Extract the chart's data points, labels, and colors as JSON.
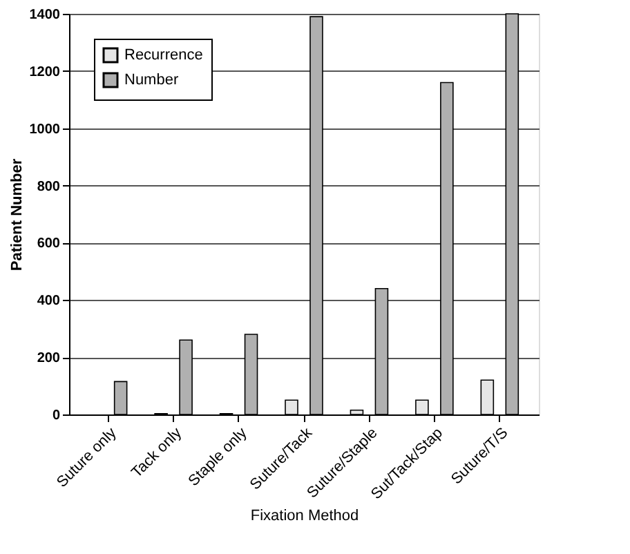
{
  "chart_data": {
    "type": "bar",
    "xlabel": "Fixation Method",
    "ylabel": "Patient Number",
    "categories": [
      "Suture only",
      "Tack only",
      "Staple only",
      "Suture/Tack",
      "Suture/Staple",
      "Sut/Tack/Stap",
      "Suture/T/S"
    ],
    "series": [
      {
        "name": "Recurrence",
        "color": "#e6e6e6",
        "values": [
          null,
          3,
          3,
          50,
          15,
          50,
          120
        ]
      },
      {
        "name": "Number",
        "color": "#b0b0b0",
        "values": [
          115,
          260,
          280,
          1390,
          440,
          1160,
          1400
        ]
      }
    ],
    "ylim": [
      0,
      1400
    ],
    "yticks": [
      0,
      200,
      400,
      600,
      800,
      1000,
      1200,
      1400
    ],
    "grid": "y",
    "legend": "top left"
  }
}
